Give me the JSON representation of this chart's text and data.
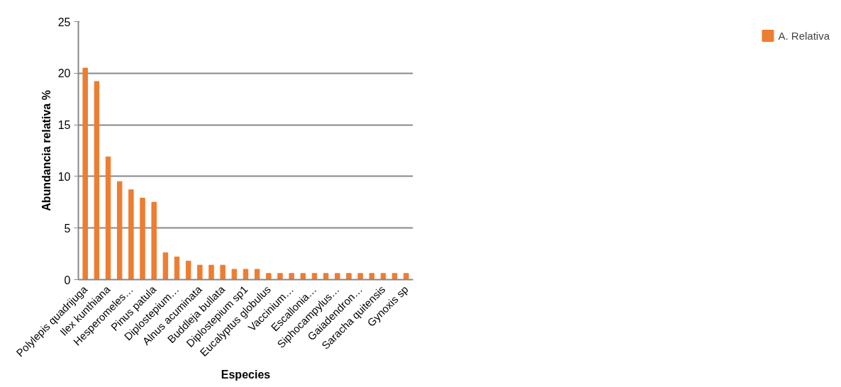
{
  "chart_data": {
    "type": "bar",
    "xlabel": "Especies",
    "ylabel": "Abundancia relativa %",
    "categories": [
      "Polylepis quadrijuga",
      null,
      "Ilex kunthiana",
      null,
      "Hesperomeles…",
      null,
      "Pinus patula",
      null,
      "Diplostepium…",
      null,
      "Alnus acuminata",
      null,
      "Buddleja bullata",
      null,
      "Diplostepium sp1",
      null,
      "Eucalyptus globulus",
      null,
      "Vaccinium…",
      null,
      "Escallonia…",
      null,
      "Siphocampylus…",
      null,
      "Gaiadendron…",
      null,
      "Saracha quitensis",
      null,
      "Gynoxis sp"
    ],
    "series": [
      {
        "name": "A. Relativa",
        "color": "#ed7d31",
        "values": [
          20.5,
          19.2,
          11.9,
          9.5,
          8.7,
          7.9,
          7.5,
          2.6,
          2.2,
          1.8,
          1.4,
          1.4,
          1.4,
          1.0,
          1.0,
          1.0,
          0.6,
          0.6,
          0.6,
          0.6,
          0.6,
          0.6,
          0.6,
          0.6,
          0.6,
          0.6,
          0.6,
          0.6,
          0.6
        ]
      }
    ],
    "ylim": [
      0,
      25
    ],
    "yticks": [
      0,
      5,
      10,
      15,
      20,
      25
    ],
    "grid": "y",
    "legend": "right"
  }
}
